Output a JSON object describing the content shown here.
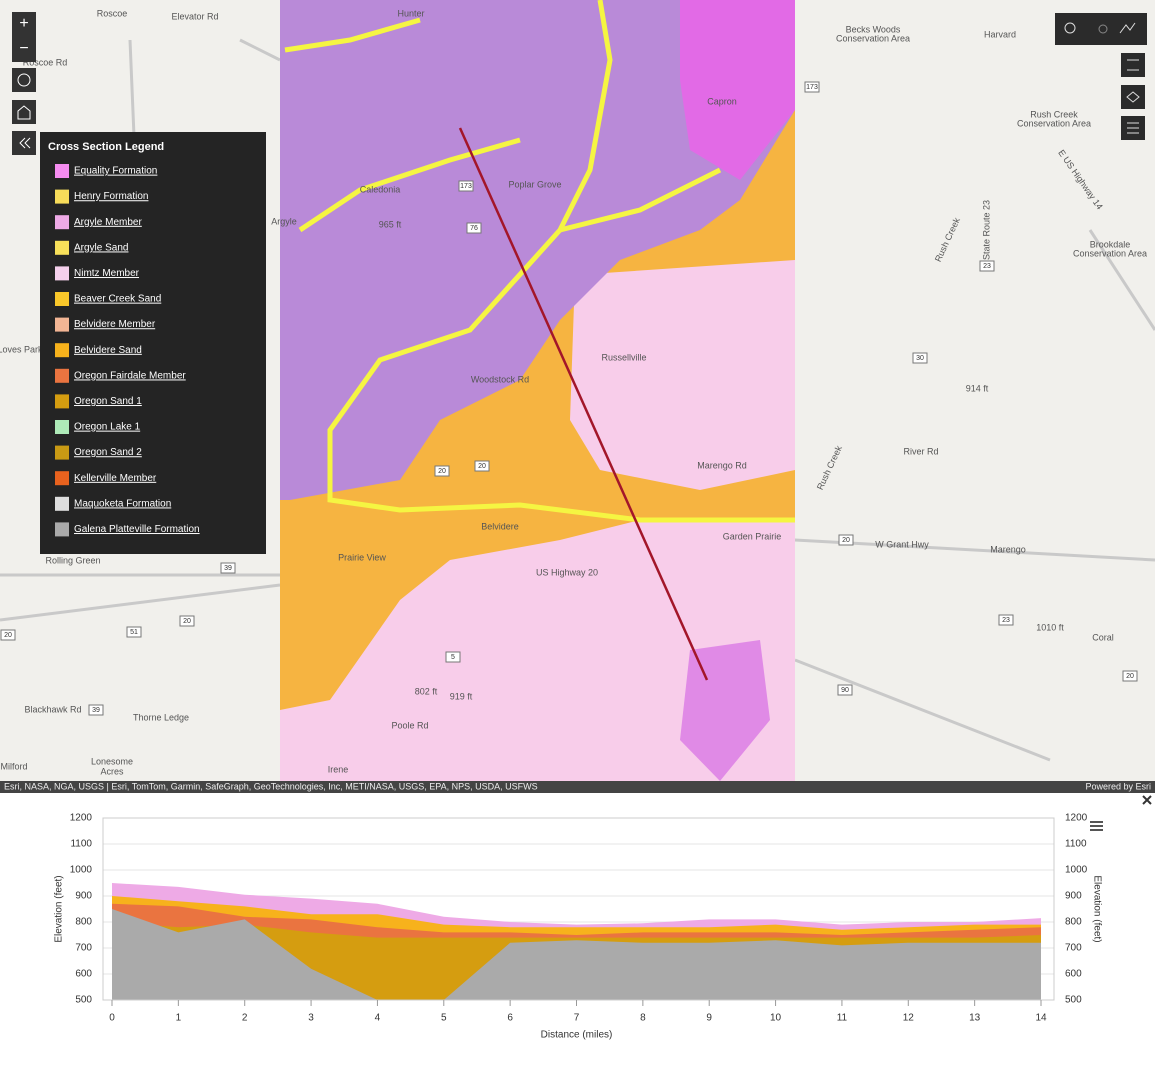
{
  "map": {
    "labels": [
      "Roscoe",
      "Elevator Rd",
      "Roscoe Rd",
      "Hunter",
      "Capron",
      "Poplar Grove",
      "Caledonia",
      "Argyle",
      "Loves Park",
      "Becks Woods",
      "Conservation Area",
      "Harvard",
      "Rush Creek",
      "Conservation Area",
      "Brookdale",
      "Conservation Area",
      "Rush Creek",
      "Russellville",
      "Woodstock Rd",
      "Marengo Rd",
      "Garden Prairie",
      "Belvidere",
      "Prairie View",
      "US Highway 20",
      "W Grant Hwy",
      "Marengo",
      "Coral",
      "River Rd",
      "914 ft",
      "1010 ft",
      "Rolling Green",
      "Blackhawk Rd",
      "Thorne Ledge",
      "Lonesome",
      "Acres",
      "Milford",
      "Irene",
      "Rush Creek",
      "E US Highway 14",
      "State Route 23",
      "965 ft",
      "802 ft",
      "919 ft",
      "Poole Rd"
    ],
    "shields": [
      "173",
      "23",
      "30",
      "20",
      "23",
      "90",
      "20",
      "39",
      "20",
      "51",
      "20",
      "39",
      "173",
      "76",
      "20",
      "20",
      "5"
    ],
    "attribution": "Esri, NASA, NGA, USGS | Esri, TomTom, Garmin, SafeGraph, GeoTechnologies, Inc, METI/NASA, USGS, EPA, NPS, USDA, USFWS",
    "powered_by": "Powered by Esri"
  },
  "legend": {
    "title": "Cross Section Legend",
    "items": [
      {
        "name": "Equality Formation",
        "color": "#f58cf0"
      },
      {
        "name": "Henry Formation",
        "color": "#f7dc5a"
      },
      {
        "name": "Argyle Member",
        "color": "#eeaae6"
      },
      {
        "name": "Argyle Sand",
        "color": "#f7e05a"
      },
      {
        "name": "Nimtz Member",
        "color": "#f5d0ec"
      },
      {
        "name": "Beaver Creek Sand",
        "color": "#f9c72a"
      },
      {
        "name": "Belvidere Member",
        "color": "#f2b594"
      },
      {
        "name": "Belvidere Sand",
        "color": "#f7b21c"
      },
      {
        "name": "Oregon Fairdale Member",
        "color": "#ea7440"
      },
      {
        "name": "Oregon Sand 1",
        "color": "#d59d10"
      },
      {
        "name": "Oregon Lake 1",
        "color": "#aeeab8"
      },
      {
        "name": "Oregon Sand 2",
        "color": "#c99a14"
      },
      {
        "name": "Kellerville Member",
        "color": "#e8621e"
      },
      {
        "name": "Maquoketa Formation",
        "color": "#dedede"
      },
      {
        "name": "Galena Platteville Formation",
        "color": "#aaaaaa"
      }
    ]
  },
  "cross_section": {
    "type": "area",
    "x_label": "Distance (miles)",
    "y_label": "Elevation (feet)",
    "y2_label": "Elevation (feet)",
    "x": [
      0,
      1,
      2,
      3,
      4,
      5,
      6,
      7,
      8,
      9,
      10,
      11,
      12,
      13,
      14
    ],
    "xlim": [
      0,
      14
    ],
    "xticks": [
      0,
      1,
      2,
      3,
      4,
      5,
      6,
      7,
      8,
      9,
      10,
      11,
      12,
      13,
      14
    ],
    "ylim": [
      500,
      1200
    ],
    "yticks": [
      500,
      600,
      700,
      800,
      900,
      1000,
      1100,
      1200
    ],
    "y2lim": [
      500,
      1200
    ],
    "y2ticks": [
      500,
      600,
      700,
      800,
      900,
      1000,
      1100,
      1200
    ],
    "series": [
      {
        "name": "Argyle Member",
        "color": "#eeaae6",
        "values": [
          950,
          935,
          905,
          890,
          870,
          820,
          800,
          790,
          795,
          810,
          810,
          790,
          800,
          800,
          815
        ]
      },
      {
        "name": "Belvidere Sand",
        "color": "#f7b21c",
        "values": [
          900,
          880,
          860,
          830,
          830,
          790,
          780,
          780,
          780,
          780,
          790,
          770,
          780,
          790,
          790
        ]
      },
      {
        "name": "Oregon Fairdale Member",
        "color": "#ea7440",
        "values": [
          870,
          860,
          820,
          810,
          780,
          760,
          760,
          750,
          760,
          760,
          760,
          750,
          760,
          770,
          780
        ]
      },
      {
        "name": "Oregon Sand 1",
        "color": "#d59d10",
        "values": [
          800,
          780,
          790,
          760,
          740,
          740,
          740,
          740,
          740,
          740,
          740,
          740,
          740,
          740,
          750
        ]
      },
      {
        "name": "Galena Platteville Formation",
        "color": "#aaaaaa",
        "values": [
          850,
          760,
          810,
          620,
          500,
          500,
          720,
          730,
          720,
          720,
          730,
          710,
          720,
          720,
          720
        ]
      }
    ]
  }
}
